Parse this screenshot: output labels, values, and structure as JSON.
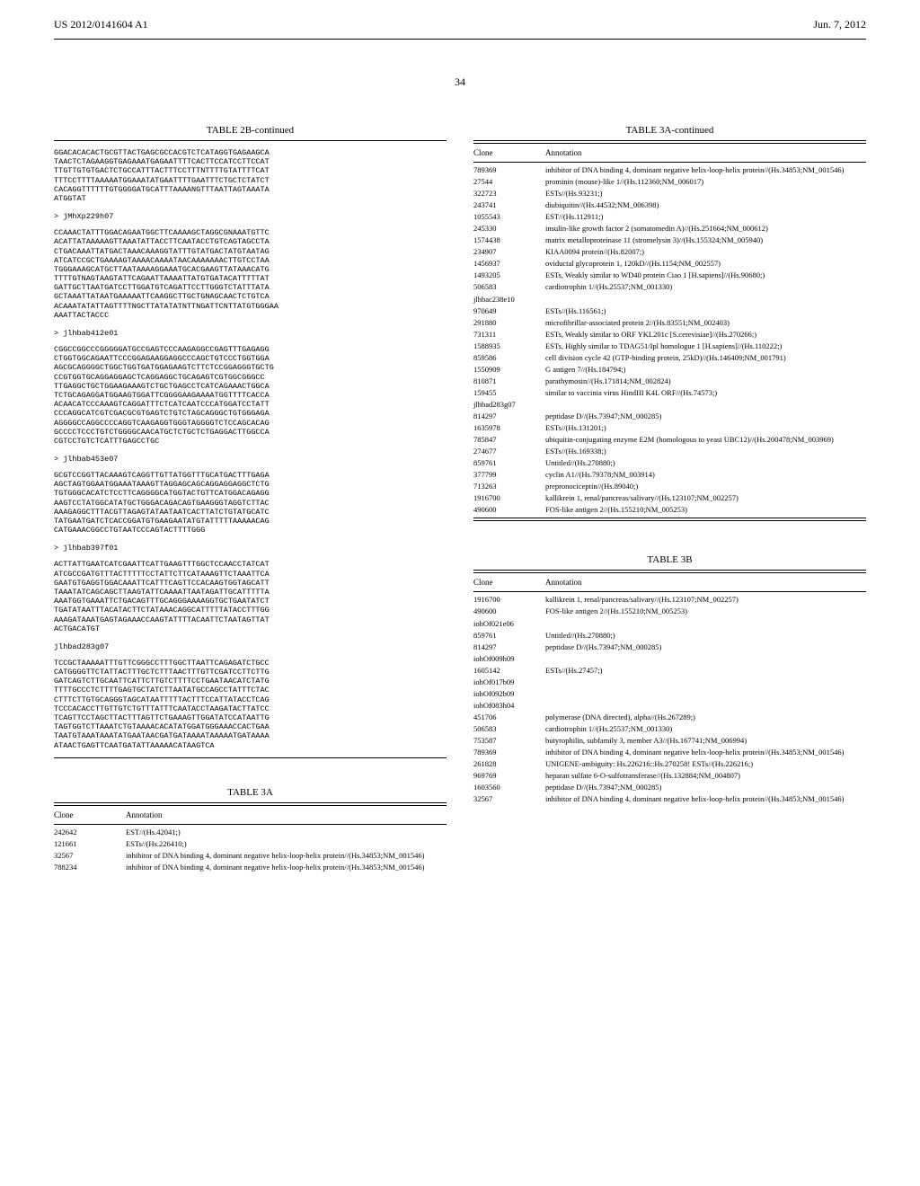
{
  "header": {
    "left": "US 2012/0141604 A1",
    "right": "Jun. 7, 2012"
  },
  "page_number": "34",
  "left_col": {
    "table2b_title": "TABLE 2B-continued",
    "seq_intro": "GGACACACACTGCGTTACTGAGCGCCACGTCTCATAGGTGAGAAGCA\nTAACTCTAGAAGGTGAGAAATGAGAATTTTCACTTCCATCCTTCCAT\nTTGTTGTGTGACTCTGCCATTTACTTTCCTTTNTTTTGTATTTTCAT\nTTTCCTTTTAAAAATGGAAATATGAATTTTGAATTTCTGCTCTATCT\nCACAGGTTTTTTGTGGGGATGCATTTAAAANGTTTAATTAGTAAATA\nATGGTAT",
    "sequences": [
      {
        "header": "> jMhXp229h07",
        "seq": "CCAAACTATTTGGACAGAATGGCTTCAAAAGCTAGGCGNAAATGTTC\nACATTATAAAAAGTTAAATATTACCTTCAATACCTGTCAGTAGCCTA\nCTGACAAATTATGACTAAACAAAGGTATTTGTATGACTATGTAATAG\nATCATCCGCTGAAAAGTAAAACAAAATAACAAAAAAACTTGTCCTAA\nTGGGAAAGCATGCTTAATAAAAGGAAATGCACGAAGTTATAAACATG\nTTTTGTNAGTAAGTATTCAGAATTAAAATTATGTGATACATTTTTAT\nGATTGCTTAATGATCCTTGGATGTCAGATTCCTTGGGTCTATTTATA\nGCTAAATTATAATGAAAAATTCAAGGCTTGCTGNAGCAACTCTGTCA\nACAAATATATTAGTTTTNGCTTATATATNTTNGATTCNTTATGTGGGAA\nAAATTACTACCC"
      },
      {
        "header": "> jlhbab412e01",
        "seq": "CGGCCGGCCCGGGGGATGCCGAGTCCCAAGAGGCCGAGTTTGAGAGG\nCTGGTGGCAGAATTCCCGGAGAAGGAGGCCCAGCTGTCCCTGGTGGA\nAGCGCAGGGGCTGGCTGGTGATGGAGAAGTCTTCTCCGGAGGGTGCTG\nCCGTGGTGCAGGAGGAGCTCAGGAGGCTGCAGAGTCGTGGCGGGCC\nTTGAGGCTGCTGGAAGAAAGTCTGCTGAGCCTCATCAGAAACTGGCA\nTCTGCAGAGGATGGAAGTGGATTCGGGGAAGAAAATGGTTTTCACCA\nACAACATCCCAAAGTCAGGATTTCTCATCAATCCCATGGATCCTATT\nCCCAGGCATCGTCGACGCGTGAGTCTGTCTAGCAGGGCTGTGGGAGA\nAGGGGCCAGGCCCCAGGTCAAGAGGTGGGTAGGGGTCTCCAGCACAG\nGCCCCTCCCTGTCTGGGGCAACATGCTCTGCTCTGAGGACTTGGCCA\nCGTCCTGTCTCATTTGAGCCTGC"
      },
      {
        "header": "> jlhbab453e07",
        "seq": "GCGTCCGGTTACAAAGTCAGGTTGTTATGGTTTGCATGACTTTGAGA\nAGCTAGTGGAATGGAAATAAAGTTAGGAGCAGCAGGAGGAGGCTCTG\nTGTGGGCACATCTCCTTCAGGGGCATGGTACTGTTCATGGACAGAGG\nAAGTCCTATGGCATATGCTGGGACAGACAGTGAAGGGTAGGTCTTAC\nAAAGAGGCTTTACGTTAGAGTATAATAATCACTTATCTGTATGCATC\nTATGAATGATCTCACCGGATGTGAAGAATATGTATTTTTAAAAACAG\nCATGAAACGGCCTGTAATCCCAGTACTTTTGGG"
      },
      {
        "header": "> jlhbab397f01",
        "seq": "ACTTATTGAATCATCGAATTCATTGAAGTTTGGCTCCAACCTATCAT\nATCGCCGATGTTTACTTTTTCCTATTCTTCATAAAGTTCTAAATTCA\nGAATGTGAGGTGGACAAATTCATTTCAGTTCCACAAGTGGTAGCATT\nTAAATATCAGCAGCTTAAGTATTCAAAATTAATAGATTGCATTTTTA\nAAATGGTGAAATTCTGACAGTTTGCAGGGAAAAGGTGCTGAATATCT\nTGATATAATTTACATACTTCTATAAACAGGCATTTTTATACCTTTGG\nAAAGATAAATGAGTAGAAACCAAGTATTTTACAATTCTAATAGTTAT\nACTGACATGT"
      },
      {
        "header": "jlhbad283g07",
        "seq": "TCCGCTAAAAATTTGTTCGGGCCTTTGGCTTAATTCAGAGATCTGCC\nCATGGGGTTCTATTACTTTGCTCTTTAACTTTGTTCGATCCTTCTTG\nGATCAGTCTTGCAATTCATTCTTGTCTTTTCCTGAATAACATCTATG\nTTTTGCCCTCTTTTGAGTGCTATCTTAATATGCCAGCCTATTTCTAC\nCTTTCTTGTGCAGGGTAGCATAATTTTTACTTTCCATTATACCTCAG\nTCCCACACCTTGTTGTCTGTTTATTTCAATACCTAAGATACTTATCC\nTCAGTTCCTAGCTTACTTTAGTTCTGAAAGTTGGATATCCATAATTG\nTAGTGGTCTTAAATCTGTAAAACACATATGGATGGGAAACCACTGAA\nTAATGTAAATAAATATGAATAACGATGATAAAATAAAAATGATAAAA\nATAACTGAGTTCAATGATATTAAAAACATAAGTCA"
      }
    ],
    "table3a_title": "TABLE 3A",
    "table3a_header": {
      "clone": "Clone",
      "anno": "Annotation"
    },
    "table3a_rows": [
      {
        "clone": "242642",
        "anno": "EST//(Hs.42041;)"
      },
      {
        "clone": "121661",
        "anno": "ESTs//(Hs.226410;)"
      },
      {
        "clone": "32567",
        "anno": "inhibitor of DNA binding 4, dominant negative helix-loop-helix protein//(Hs.34853;NM_001546)"
      },
      {
        "clone": "788234",
        "anno": "inhibitor of DNA binding 4, dominant negative helix-loop-helix protein//(Hs.34853;NM_001546)"
      }
    ]
  },
  "right_col": {
    "table3a_cont_title": "TABLE 3A-continued",
    "table3a_header": {
      "clone": "Clone",
      "anno": "Annotation"
    },
    "table3a_cont_rows": [
      {
        "clone": "789369",
        "anno": "inhibitor of DNA binding 4, dominant negative helix-loop-helix protein//(Hs.34853;NM_001546)"
      },
      {
        "clone": "27544",
        "anno": "prominin (mouse)-like 1//(Hs.112360;NM_006017)"
      },
      {
        "clone": "322723",
        "anno": "ESTs//(Hs.93231;)"
      },
      {
        "clone": "243741",
        "anno": "diubiquitin//(Hs.44532;NM_006398)"
      },
      {
        "clone": "1055543",
        "anno": "EST//(Hs.112911;)"
      },
      {
        "clone": "245330",
        "anno": "insulin-like growth factor 2 (somatomedin A)//(Hs.251664;NM_000612)"
      },
      {
        "clone": "1574438",
        "anno": "matrix metalloproteinase 11 (stromelysin 3)//(Hs.155324;NM_005940)"
      },
      {
        "clone": "234907",
        "anno": "KIAA0094 protein//(Hs.82007;)"
      },
      {
        "clone": "1456937",
        "anno": "oviductal glycoprotein 1, 120kD//(Hs.1154;NM_002557)"
      },
      {
        "clone": "1493205",
        "anno": "ESTs, Weakly similar to WD40 protein Ciao 1 [H.sapiens]//(Hs.90680;)"
      },
      {
        "clone": "506583",
        "anno": "cardiotrophin 1//(Hs.25537;NM_001330)"
      },
      {
        "clone": "jlhbac238e10",
        "anno": ""
      },
      {
        "clone": "970649",
        "anno": "ESTs//(Hs.116561;)"
      },
      {
        "clone": "291880",
        "anno": "microfibrillar-associated protein 2//(Hs.83551;NM_002403)"
      },
      {
        "clone": "731311",
        "anno": "ESTs, Weakly similar to ORF YKL201c [S.cerevisiae]//(Hs.270266;)"
      },
      {
        "clone": "1588935",
        "anno": "ESTs, Highly similar to TDAG51/Ipl homologue 1 [H.sapiens]//(Hs.110222;)"
      },
      {
        "clone": "859586",
        "anno": "cell division cycle 42 (GTP-binding protein, 25kD)//(Hs.146409;NM_001791)"
      },
      {
        "clone": "1550909",
        "anno": "G antigen 7//(Hs.184794;)"
      },
      {
        "clone": "810871",
        "anno": "parathymosin//(Hs.171814;NM_002824)"
      },
      {
        "clone": "159455",
        "anno": "similar to vaccinia virus HindIII K4L ORF//(Hs.74573;)"
      },
      {
        "clone": "jlhbad283g07",
        "anno": ""
      },
      {
        "clone": "814297",
        "anno": "peptidase D//(Hs.73947;NM_000285)"
      },
      {
        "clone": "1635978",
        "anno": "ESTs//(Hs.131201;)"
      },
      {
        "clone": "785847",
        "anno": "ubiquitin-conjugating enzyme E2M (homologous to yeast UBC12)//(Hs.200478;NM_003969)"
      },
      {
        "clone": "274677",
        "anno": "ESTs//(Hs.169338;)"
      },
      {
        "clone": "859761",
        "anno": "Untitled//(Hs.270880;)"
      },
      {
        "clone": "377799",
        "anno": "cyclin A1//(Hs.79378;NM_003914)"
      },
      {
        "clone": "713263",
        "anno": "prepronociceptin//(Hs.89040;)"
      },
      {
        "clone": "1916700",
        "anno": "kallikrein 1, renal/pancreas/salivary//(Hs.123107;NM_002257)"
      },
      {
        "clone": "490600",
        "anno": "FOS-like antigen 2//(Hs.155210;NM_005253)"
      }
    ],
    "table3b_title": "TABLE 3B",
    "table3b_header": {
      "clone": "Clone",
      "anno": "Annotation"
    },
    "table3b_rows": [
      {
        "clone": "1916700",
        "anno": "kallikrein 1, renal/pancreas/salivary//(Hs.123107;NM_002257)"
      },
      {
        "clone": "490600",
        "anno": "FOS-like antigen 2//(Hs.155210;NM_005253)"
      },
      {
        "clone": "iohOf021e06",
        "anno": ""
      },
      {
        "clone": "859761",
        "anno": "Untitled//(Hs.270880;)"
      },
      {
        "clone": "814297",
        "anno": "peptidase D//(Hs.73947;NM_000285)"
      },
      {
        "clone": "iohOf009h09",
        "anno": ""
      },
      {
        "clone": "1605142",
        "anno": "ESTs//(Hs.27457;)"
      },
      {
        "clone": "iohOf017b09",
        "anno": ""
      },
      {
        "clone": "iohOf092b09",
        "anno": ""
      },
      {
        "clone": "iohOf083h04",
        "anno": ""
      },
      {
        "clone": "451706",
        "anno": "polymerase (DNA directed), alpha//(Hs.267289;)"
      },
      {
        "clone": "506583",
        "anno": "cardiotrophin 1//(Hs.25537;NM_001330)"
      },
      {
        "clone": "753587",
        "anno": "butyrophilin, subfamily 3, member A3//(Hs.167741;NM_006994)"
      },
      {
        "clone": "789369",
        "anno": "inhibitor of DNA binding 4, dominant negative helix-loop-helix protein//(Hs.34853;NM_001546)"
      },
      {
        "clone": "261828",
        "anno": "UNIGENE-ambiguity: Hs.226216::Hs.270258! ESTs//(Hs.226216;)"
      },
      {
        "clone": "969769",
        "anno": "heparan sulfate 6-O-sulfotransferase//(Hs.132884;NM_004807)"
      },
      {
        "clone": "1603560",
        "anno": "peptidase D//(Hs.73947;NM_000285)"
      },
      {
        "clone": "32567",
        "anno": "inhibitor of DNA binding 4, dominant negative helix-loop-helix protein//(Hs.34853;NM_001546)"
      }
    ]
  }
}
